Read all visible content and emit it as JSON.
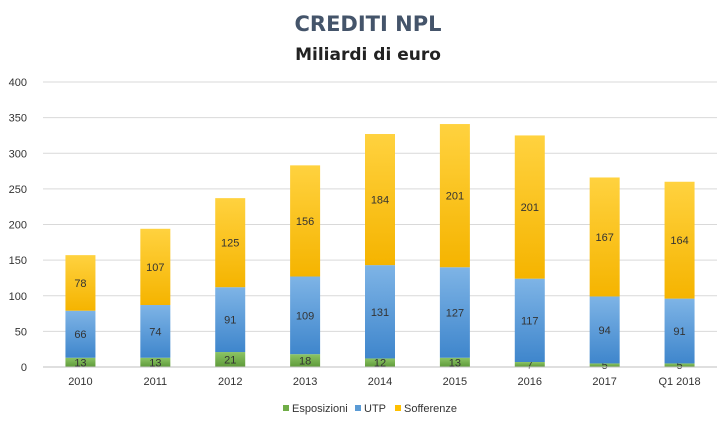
{
  "chart_data": {
    "type": "bar",
    "stacked": true,
    "title": "CREDITI NPL",
    "subtitle": "Miliardi  di euro",
    "categories": [
      "2010",
      "2011",
      "2012",
      "2013",
      "2014",
      "2015",
      "2016",
      "2017",
      "Q1 2018"
    ],
    "series": [
      {
        "name": "Esposizioni",
        "color": "#70ad47",
        "gradient": [
          "#8cc464",
          "#5e9a3a"
        ],
        "values": [
          13,
          13,
          21,
          18,
          12,
          13,
          7,
          5,
          5
        ]
      },
      {
        "name": "UTP",
        "color": "#5b9bd5",
        "gradient": [
          "#7eb4e6",
          "#3f86cc"
        ],
        "values": [
          66,
          74,
          91,
          109,
          131,
          127,
          117,
          94,
          91
        ]
      },
      {
        "name": "Sofferenze",
        "color": "#ffc000",
        "gradient": [
          "#ffd23f",
          "#f5b400"
        ],
        "values": [
          78,
          107,
          125,
          156,
          184,
          201,
          201,
          167,
          164
        ]
      }
    ],
    "yticks": [
      0,
      50,
      100,
      150,
      200,
      250,
      300,
      350,
      400
    ],
    "ylim": [
      0,
      400
    ],
    "grid": true,
    "legend": "bottom"
  }
}
